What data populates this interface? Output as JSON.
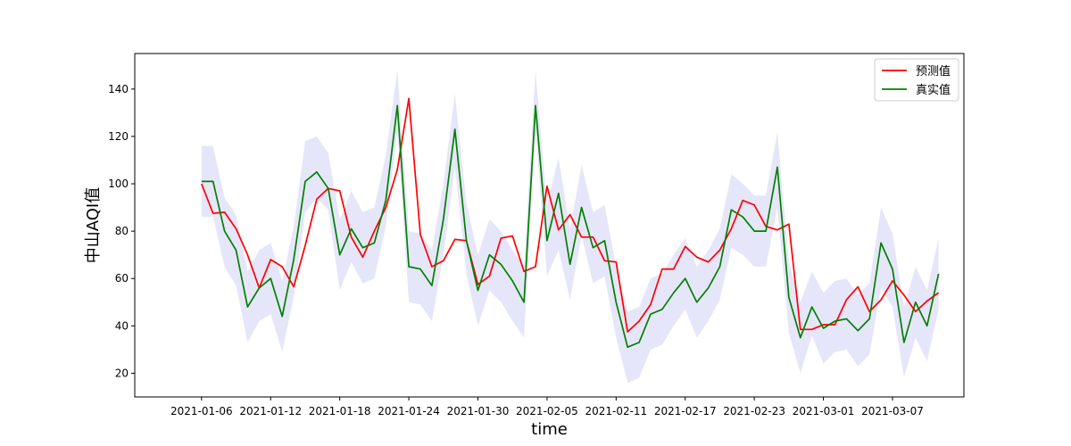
{
  "chart_data": {
    "type": "line",
    "xlabel": "time",
    "ylabel": "中山AQI值",
    "x_tick_labels": [
      "2021-01-06",
      "2021-01-12",
      "2021-01-18",
      "2021-01-24",
      "2021-01-30",
      "2021-02-05",
      "2021-02-11",
      "2021-02-17",
      "2021-02-23",
      "2021-03-01",
      "2021-03-07"
    ],
    "x_tick_offsets": [
      0,
      6,
      12,
      18,
      24,
      30,
      36,
      42,
      48,
      54,
      60
    ],
    "xlim": [
      -5.8,
      66.2
    ],
    "y_ticks": [
      20,
      40,
      60,
      80,
      100,
      120,
      140
    ],
    "ylim": [
      10,
      155
    ],
    "grid": false,
    "legend_position": "top-right",
    "band": {
      "color": "#e6e6fa",
      "lower": [
        86,
        86,
        65,
        57,
        33,
        42,
        45,
        29,
        52,
        88,
        94,
        89,
        55,
        67,
        58,
        60,
        82,
        122,
        50,
        49,
        42,
        70,
        107,
        62,
        40,
        55,
        50,
        42,
        35,
        123,
        61,
        72,
        51,
        78,
        58,
        61,
        35,
        16,
        18,
        30,
        32,
        40,
        47,
        35,
        42,
        51,
        73,
        70,
        65,
        65,
        90,
        37,
        20,
        36,
        24,
        29,
        30,
        23,
        28,
        56,
        48,
        18,
        35,
        25,
        47
      ],
      "upper": [
        116,
        116,
        94,
        87,
        63,
        72,
        75,
        59,
        82,
        118,
        120,
        113,
        85,
        97,
        88,
        90,
        112,
        148,
        80,
        79,
        72,
        100,
        138,
        92,
        70,
        85,
        80,
        72,
        65,
        148,
        91,
        111,
        81,
        108,
        88,
        91,
        65,
        46,
        48,
        60,
        62,
        70,
        77,
        65,
        72,
        81,
        104,
        100,
        95,
        95,
        122,
        67,
        50,
        63,
        54,
        59,
        60,
        53,
        58,
        90,
        79,
        48,
        65,
        55,
        77
      ]
    },
    "series": [
      {
        "name": "预测值",
        "color": "#ff0000",
        "values": [
          100,
          87.5,
          88,
          81,
          70,
          56,
          68,
          65,
          56.5,
          74,
          93.5,
          98,
          97,
          77.5,
          69,
          80,
          90,
          106,
          136,
          78.5,
          65,
          67.5,
          76.5,
          76,
          57.5,
          61,
          77,
          78,
          63,
          65,
          99,
          80.5,
          87,
          77.5,
          77.5,
          67.5,
          67,
          37.5,
          42,
          49,
          64,
          64,
          73.5,
          69,
          67,
          72,
          81,
          93,
          91,
          82,
          80.5,
          83,
          38.5,
          38.5,
          40.5,
          40.5,
          51,
          56.5,
          46,
          51,
          59,
          53,
          46,
          50.5,
          54
        ]
      },
      {
        "name": "真实值",
        "color": "#008000",
        "values": [
          101,
          101,
          80,
          72,
          48,
          56,
          60,
          44,
          68,
          101,
          105,
          98,
          70,
          81,
          73,
          75,
          93,
          133,
          65,
          64,
          57,
          85,
          123,
          76,
          55,
          70,
          66,
          59,
          50,
          133,
          76,
          96,
          66,
          90,
          73,
          76,
          50,
          31,
          33,
          45,
          47,
          54,
          60,
          50,
          56,
          65,
          89,
          86,
          80,
          80,
          107,
          52,
          35,
          48,
          39,
          42,
          43,
          38,
          43,
          75,
          64,
          33,
          50,
          40,
          62
        ]
      }
    ]
  }
}
